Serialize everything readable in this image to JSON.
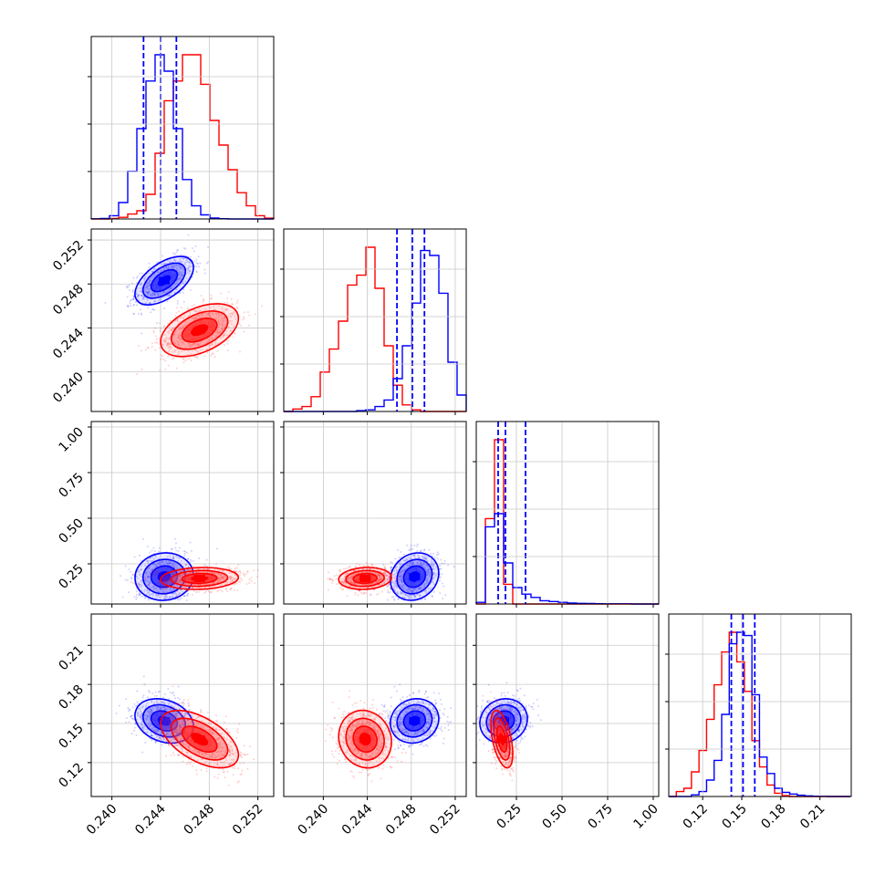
{
  "chart_data": {
    "type": "corner",
    "grid": true,
    "series": [
      {
        "name": "",
        "color": "#0000ff"
      },
      {
        "name": "",
        "color": "#ff0000"
      }
    ],
    "parameters": [
      {
        "range": [
          0.2383,
          0.2533
        ],
        "ticks": [
          "0.240",
          "0.244",
          "0.248",
          "0.252"
        ],
        "quantile_lines": [
          0.2426,
          0.244,
          0.2453
        ],
        "hist_x0": 0.2383,
        "hist_dx": 0.00075,
        "hist": {
          "blue": [
            0.1,
            0.3,
            2,
            10,
            29,
            55,
            84,
            100,
            90,
            55,
            24,
            8,
            2.5,
            0.6,
            0.2,
            0,
            0,
            0,
            0,
            0
          ],
          "red": [
            0,
            0,
            0.3,
            1,
            3,
            5,
            15,
            40,
            72,
            84,
            100,
            100,
            82,
            60,
            45,
            30,
            16,
            8,
            2,
            0.5
          ]
        }
      },
      {
        "range": [
          0.2364,
          0.253
        ],
        "ticks": [
          "0.240",
          "0.244",
          "0.248",
          "0.252"
        ],
        "quantile_lines": [
          0.2467,
          0.2481,
          0.2492
        ],
        "hist_x0": 0.2364,
        "hist_dx": 0.00083,
        "hist": {
          "blue": [
            0,
            0,
            0,
            0,
            0,
            0,
            0,
            0,
            0.5,
            1,
            3,
            7,
            20,
            40,
            66,
            98,
            95,
            72,
            30,
            10,
            2,
            0
          ],
          "red": [
            0,
            1.5,
            3,
            9,
            24,
            38,
            55,
            77,
            83,
            100,
            75,
            40,
            16,
            4,
            1,
            0,
            0,
            0,
            0,
            0,
            0,
            0
          ]
        }
      },
      {
        "range": [
          0.03,
          1.03
        ],
        "ticks": [
          "0.25",
          "0.50",
          "0.75",
          "1.00"
        ],
        "quantile_lines": [
          0.15,
          0.19,
          0.3
        ],
        "hist_x0": 0.03,
        "hist_dx": 0.05,
        "hist": {
          "blue": [
            1,
            47,
            55,
            25,
            10,
            6,
            4,
            2,
            1.5,
            1,
            0.6,
            0.4,
            0.3,
            0.2,
            0.1,
            0.1,
            0.1,
            0,
            0,
            0
          ],
          "red": [
            0,
            52,
            100,
            12,
            0,
            0,
            0,
            0,
            0,
            0,
            0,
            0,
            0,
            0,
            0,
            0,
            0,
            0,
            0,
            0
          ]
        }
      },
      {
        "range": [
          0.094,
          0.234
        ],
        "ticks": [
          "0.12",
          "0.15",
          "0.18",
          "0.21"
        ],
        "quantile_lines": [
          0.142,
          0.151,
          0.16
        ],
        "hist_x0": 0.094,
        "hist_dx": 0.0058,
        "hist": {
          "blue": [
            0,
            0,
            0,
            1,
            3,
            10,
            22,
            50,
            93,
            100,
            98,
            62,
            24,
            14,
            5,
            2.5,
            1.5,
            0.8,
            0.4,
            0.2,
            0.1,
            0,
            0,
            0
          ],
          "red": [
            0,
            3,
            5,
            15,
            28,
            47,
            68,
            88,
            100,
            82,
            64,
            34,
            18,
            7,
            2,
            0.5,
            0,
            0,
            0,
            0,
            0,
            0,
            0,
            0
          ]
        }
      }
    ],
    "clouds": {
      "blue": [
        {
          "mean": [
            0.2443,
            0.2483,
            0.18,
            0.152
          ],
          "sd": [
            0.0012,
            0.0011,
            0.065,
            0.0085
          ],
          "rho": [
            [
              1,
              0.55,
              0.05,
              -0.25
            ],
            [
              0.55,
              1,
              0.15,
              0.1
            ],
            [
              0.05,
              0.15,
              1,
              0.1
            ],
            [
              -0.25,
              0.1,
              0.1,
              1
            ]
          ]
        }
      ],
      "red": [
        {
          "mean": [
            0.2472,
            0.2438,
            0.17,
            0.138
          ],
          "sd": [
            0.0016,
            0.0012,
            0.03,
            0.011
          ],
          "rho": [
            [
              1,
              0.45,
              0.1,
              -0.55
            ],
            [
              0.45,
              1,
              0.1,
              -0.1
            ],
            [
              0.1,
              0.1,
              1,
              -0.5
            ],
            [
              -0.55,
              -0.1,
              -0.5,
              1
            ]
          ]
        }
      ]
    }
  }
}
